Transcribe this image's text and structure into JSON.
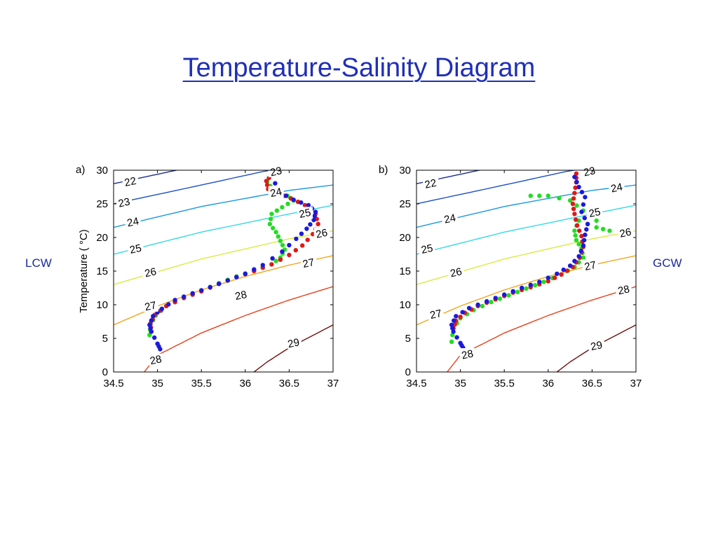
{
  "page": {
    "title": "Temperature-Salinity Diagram",
    "left_label": "LCW",
    "right_label": "GCW"
  },
  "colors": {
    "title": "#1f2fb8",
    "side_labels": "#1a2a9e",
    "series": {
      "blue": "#1a1adc",
      "red": "#e01818",
      "green": "#22dd22"
    },
    "isopycnals": {
      "22": "#1a2a9a",
      "23": "#1a4fc8",
      "24": "#1a9ae0",
      "25": "#30d8e8",
      "26": "#d8ec40",
      "27": "#f5a31a",
      "28": "#e8401a",
      "29": "#701010"
    }
  },
  "chart_data": [
    {
      "type": "scatter",
      "panel_label": "a)",
      "xlabel": "",
      "ylabel": "Temperature ( °C)",
      "xlim": [
        34.5,
        37
      ],
      "ylim": [
        0,
        30
      ],
      "xticks": [
        "34.5",
        "35",
        "35.5",
        "36",
        "36.5",
        "37"
      ],
      "yticks": [
        "0",
        "5",
        "10",
        "15",
        "20",
        "25",
        "30"
      ],
      "contour_labels": [
        "22",
        "23",
        "24",
        "25",
        "26",
        "27",
        "28",
        "29"
      ],
      "series": [
        {
          "color": "blue",
          "x": [
            35.03,
            35.0,
            34.93,
            34.91,
            34.95,
            35.05,
            35.2,
            35.4,
            35.6,
            35.8,
            36.0,
            36.2,
            36.42,
            36.58,
            36.7,
            36.78,
            36.8,
            36.72,
            36.55,
            36.38,
            36.3
          ],
          "y": [
            3.4,
            4.2,
            6.0,
            7.0,
            8.3,
            9.4,
            10.7,
            11.7,
            12.6,
            13.6,
            14.6,
            15.9,
            17.9,
            19.8,
            21.3,
            22.6,
            23.8,
            24.8,
            25.6,
            26.8,
            29.3
          ]
        },
        {
          "color": "red",
          "x": [
            34.93,
            34.92,
            34.97,
            35.1,
            35.3,
            35.5,
            35.7,
            35.9,
            36.1,
            36.3,
            36.5,
            36.65,
            36.77,
            36.83,
            36.8,
            36.68,
            36.52,
            36.36,
            36.26,
            36.24,
            36.3
          ],
          "y": [
            6.0,
            7.2,
            8.5,
            9.8,
            11.0,
            12.0,
            13.1,
            14.1,
            15.0,
            16.0,
            17.4,
            18.8,
            20.5,
            22.0,
            23.5,
            24.8,
            25.8,
            26.6,
            27.2,
            28.4,
            29.3
          ]
        },
        {
          "color": "green",
          "x": [
            34.91,
            34.92,
            34.98,
            35.1,
            35.3,
            35.5,
            35.7,
            35.9,
            36.1,
            36.3,
            36.4,
            36.45,
            36.4,
            36.35,
            36.28,
            36.3,
            36.42,
            36.55,
            36.48,
            36.32,
            36.25
          ],
          "y": [
            5.5,
            7.0,
            8.4,
            9.8,
            11.0,
            12.1,
            13.2,
            14.2,
            15.1,
            16.0,
            17.0,
            18.2,
            19.5,
            20.8,
            22.0,
            23.5,
            24.5,
            25.5,
            26.2,
            27.0,
            28.3
          ]
        }
      ]
    },
    {
      "type": "scatter",
      "panel_label": "b)",
      "xlabel": "",
      "ylabel": "",
      "xlim": [
        34.5,
        37
      ],
      "ylim": [
        0,
        30
      ],
      "xticks": [
        "34.5",
        "35",
        "35.5",
        "36",
        "36.5",
        "37"
      ],
      "yticks": [
        "0",
        "5",
        "10",
        "15",
        "20",
        "25",
        "30"
      ],
      "contour_labels": [
        "22",
        "23",
        "24",
        "25",
        "26",
        "27",
        "28",
        "29"
      ],
      "series": [
        {
          "color": "blue",
          "x": [
            35.03,
            35.0,
            34.92,
            34.9,
            34.95,
            35.1,
            35.3,
            35.5,
            35.7,
            35.9,
            36.1,
            36.25,
            36.35,
            36.4,
            36.42,
            36.45,
            36.38,
            36.42,
            36.35,
            36.3
          ],
          "y": [
            3.6,
            4.3,
            6.0,
            7.0,
            8.3,
            9.5,
            10.5,
            11.5,
            12.5,
            13.4,
            14.6,
            15.8,
            17.2,
            18.8,
            20.4,
            22.0,
            23.8,
            26.0,
            27.5,
            29.0
          ]
        },
        {
          "color": "red",
          "x": [
            34.92,
            34.95,
            35.05,
            35.2,
            35.4,
            35.6,
            35.8,
            36.0,
            36.15,
            36.28,
            36.36,
            36.4,
            36.38,
            36.33,
            36.3,
            36.28,
            36.3,
            36.32,
            36.32
          ],
          "y": [
            6.5,
            7.6,
            8.8,
            9.8,
            10.8,
            11.8,
            12.6,
            13.5,
            14.5,
            15.6,
            17.0,
            18.6,
            20.2,
            21.8,
            23.5,
            25.0,
            26.6,
            28.2,
            29.5
          ]
        },
        {
          "color": "green",
          "x": [
            34.9,
            34.92,
            35.0,
            35.15,
            35.35,
            35.55,
            35.75,
            35.95,
            36.15,
            36.3,
            36.4,
            36.38,
            36.32,
            36.3,
            36.35,
            36.55,
            36.7,
            36.4,
            36.25,
            36.0,
            35.8
          ],
          "y": [
            4.5,
            6.5,
            8.0,
            9.2,
            10.4,
            11.4,
            12.4,
            13.4,
            14.5,
            15.6,
            17.0,
            18.4,
            19.6,
            21.0,
            22.5,
            21.5,
            21.0,
            24.0,
            25.5,
            26.2,
            26.2
          ]
        }
      ]
    }
  ]
}
